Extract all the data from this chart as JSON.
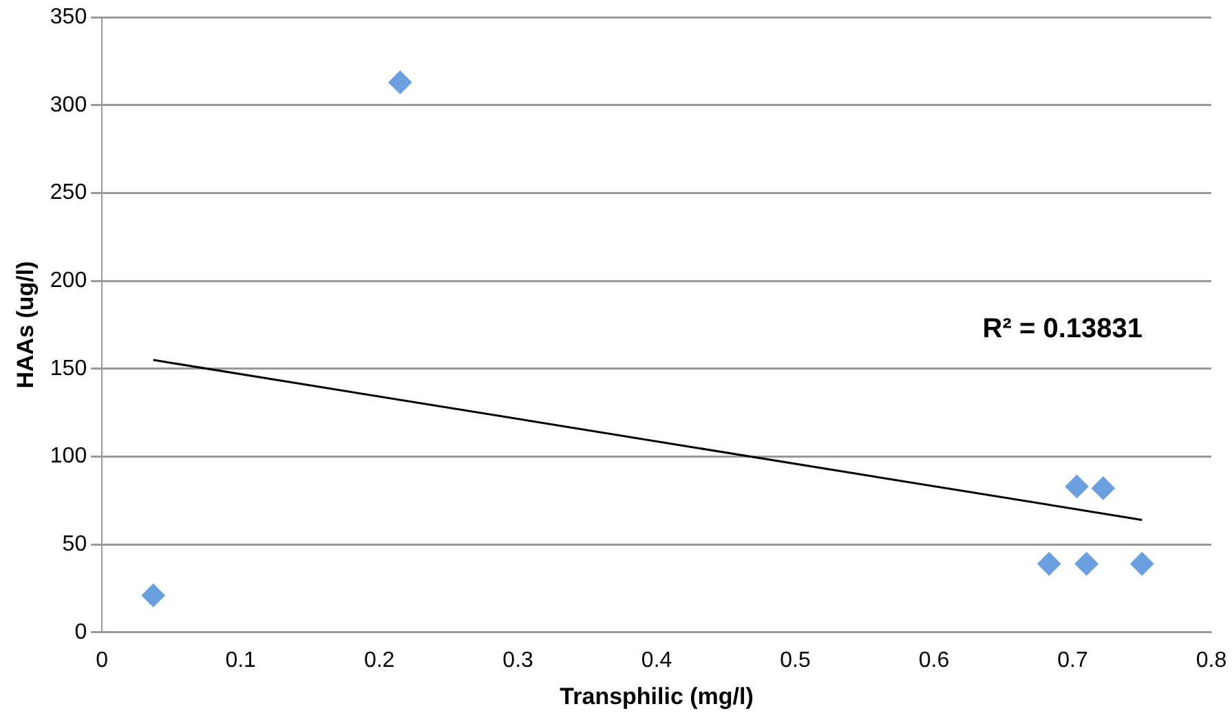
{
  "chart_data": {
    "type": "scatter",
    "xlabel": "Transphilic (mg/l)",
    "ylabel": "HAAs (ug/l)",
    "xlim": [
      0,
      0.8
    ],
    "xticks": [
      0,
      0.1,
      0.2,
      0.3,
      0.4,
      0.5,
      0.6,
      0.7,
      0.8
    ],
    "ylim": [
      0,
      350
    ],
    "yticks": [
      0,
      50,
      100,
      150,
      200,
      250,
      300,
      350
    ],
    "grid": "y",
    "legend": false,
    "marker": "diamond",
    "series": [
      {
        "color": "#6a9fe0",
        "x": [
          0.037,
          0.215,
          0.683,
          0.703,
          0.71,
          0.722,
          0.75
        ],
        "values": [
          21,
          313,
          39,
          83,
          39,
          82,
          39
        ]
      },
      {
        "type": "line",
        "color": "#000000",
        "marker": "none",
        "x": [
          0.037,
          0.75
        ],
        "values": [
          155,
          64
        ]
      }
    ],
    "annotations": [
      "R² = 0.13831"
    ]
  }
}
